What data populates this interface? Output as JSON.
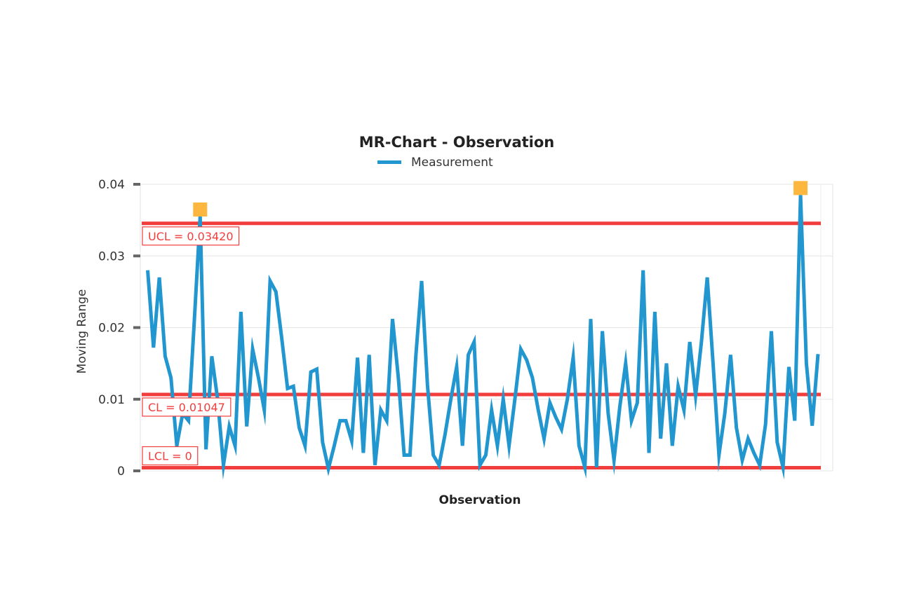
{
  "chart_data": {
    "type": "line",
    "title": "MR-Chart - Observation",
    "xlabel": "Observation",
    "ylabel": "Moving Range",
    "ylim": [
      0,
      0.04
    ],
    "yticks": [
      "0",
      "0.01",
      "0.02",
      "0.03",
      "0.04"
    ],
    "ytick_values": [
      0,
      0.01,
      0.02,
      0.03,
      0.04
    ],
    "grid": true,
    "legend": {
      "position": "top",
      "entries": [
        "Measurement"
      ]
    },
    "series": [
      {
        "name": "Measurement",
        "color": "#2196cf",
        "values": [
          0.028,
          0.0172,
          0.027,
          0.016,
          0.013,
          0.0035,
          0.008,
          0.007,
          0.021,
          0.0355,
          0.003,
          0.016,
          0.01,
          0.0008,
          0.0062,
          0.0035,
          0.0222,
          0.0062,
          0.017,
          0.013,
          0.0085,
          0.0265,
          0.025,
          0.0185,
          0.0115,
          0.0118,
          0.006,
          0.0035,
          0.0138,
          0.0142,
          0.004,
          0.0003,
          0.0035,
          0.007,
          0.007,
          0.0042,
          0.0158,
          0.0025,
          0.0162,
          0.0008,
          0.0085,
          0.007,
          0.0212,
          0.013,
          0.0022,
          0.0022,
          0.016,
          0.0265,
          0.012,
          0.0022,
          0.0008,
          0.005,
          0.01,
          0.0145,
          0.0035,
          0.0162,
          0.018,
          0.0008,
          0.0022,
          0.0085,
          0.0035,
          0.01,
          0.0035,
          0.01,
          0.017,
          0.0155,
          0.013,
          0.0085,
          0.0045,
          0.0095,
          0.0075,
          0.0058,
          0.01,
          0.0158,
          0.0035,
          0.0005,
          0.0212,
          0.0005,
          0.0195,
          0.008,
          0.0015,
          0.009,
          0.015,
          0.007,
          0.0095,
          0.028,
          0.0025,
          0.0222,
          0.0045,
          0.015,
          0.0035,
          0.0118,
          0.0085,
          0.018,
          0.0105,
          0.018,
          0.027,
          0.015,
          0.0022,
          0.008,
          0.0162,
          0.006,
          0.0015,
          0.0045,
          0.0025,
          0.0008,
          0.0065,
          0.0195,
          0.004,
          0.0005,
          0.0145,
          0.007,
          0.0385,
          0.015,
          0.0063,
          0.0163
        ]
      }
    ],
    "control_limits": {
      "color": "#f23d3d",
      "ucl": {
        "label": "UCL = 0.03420",
        "value": 0.0342
      },
      "cl": {
        "label": "CL = 0.01047",
        "value": 0.01047
      },
      "lcl": {
        "label": "LCL = 0",
        "value": 0
      }
    },
    "out_of_control_points": {
      "color": "#fdb73e",
      "indices": [
        9,
        112
      ]
    }
  }
}
